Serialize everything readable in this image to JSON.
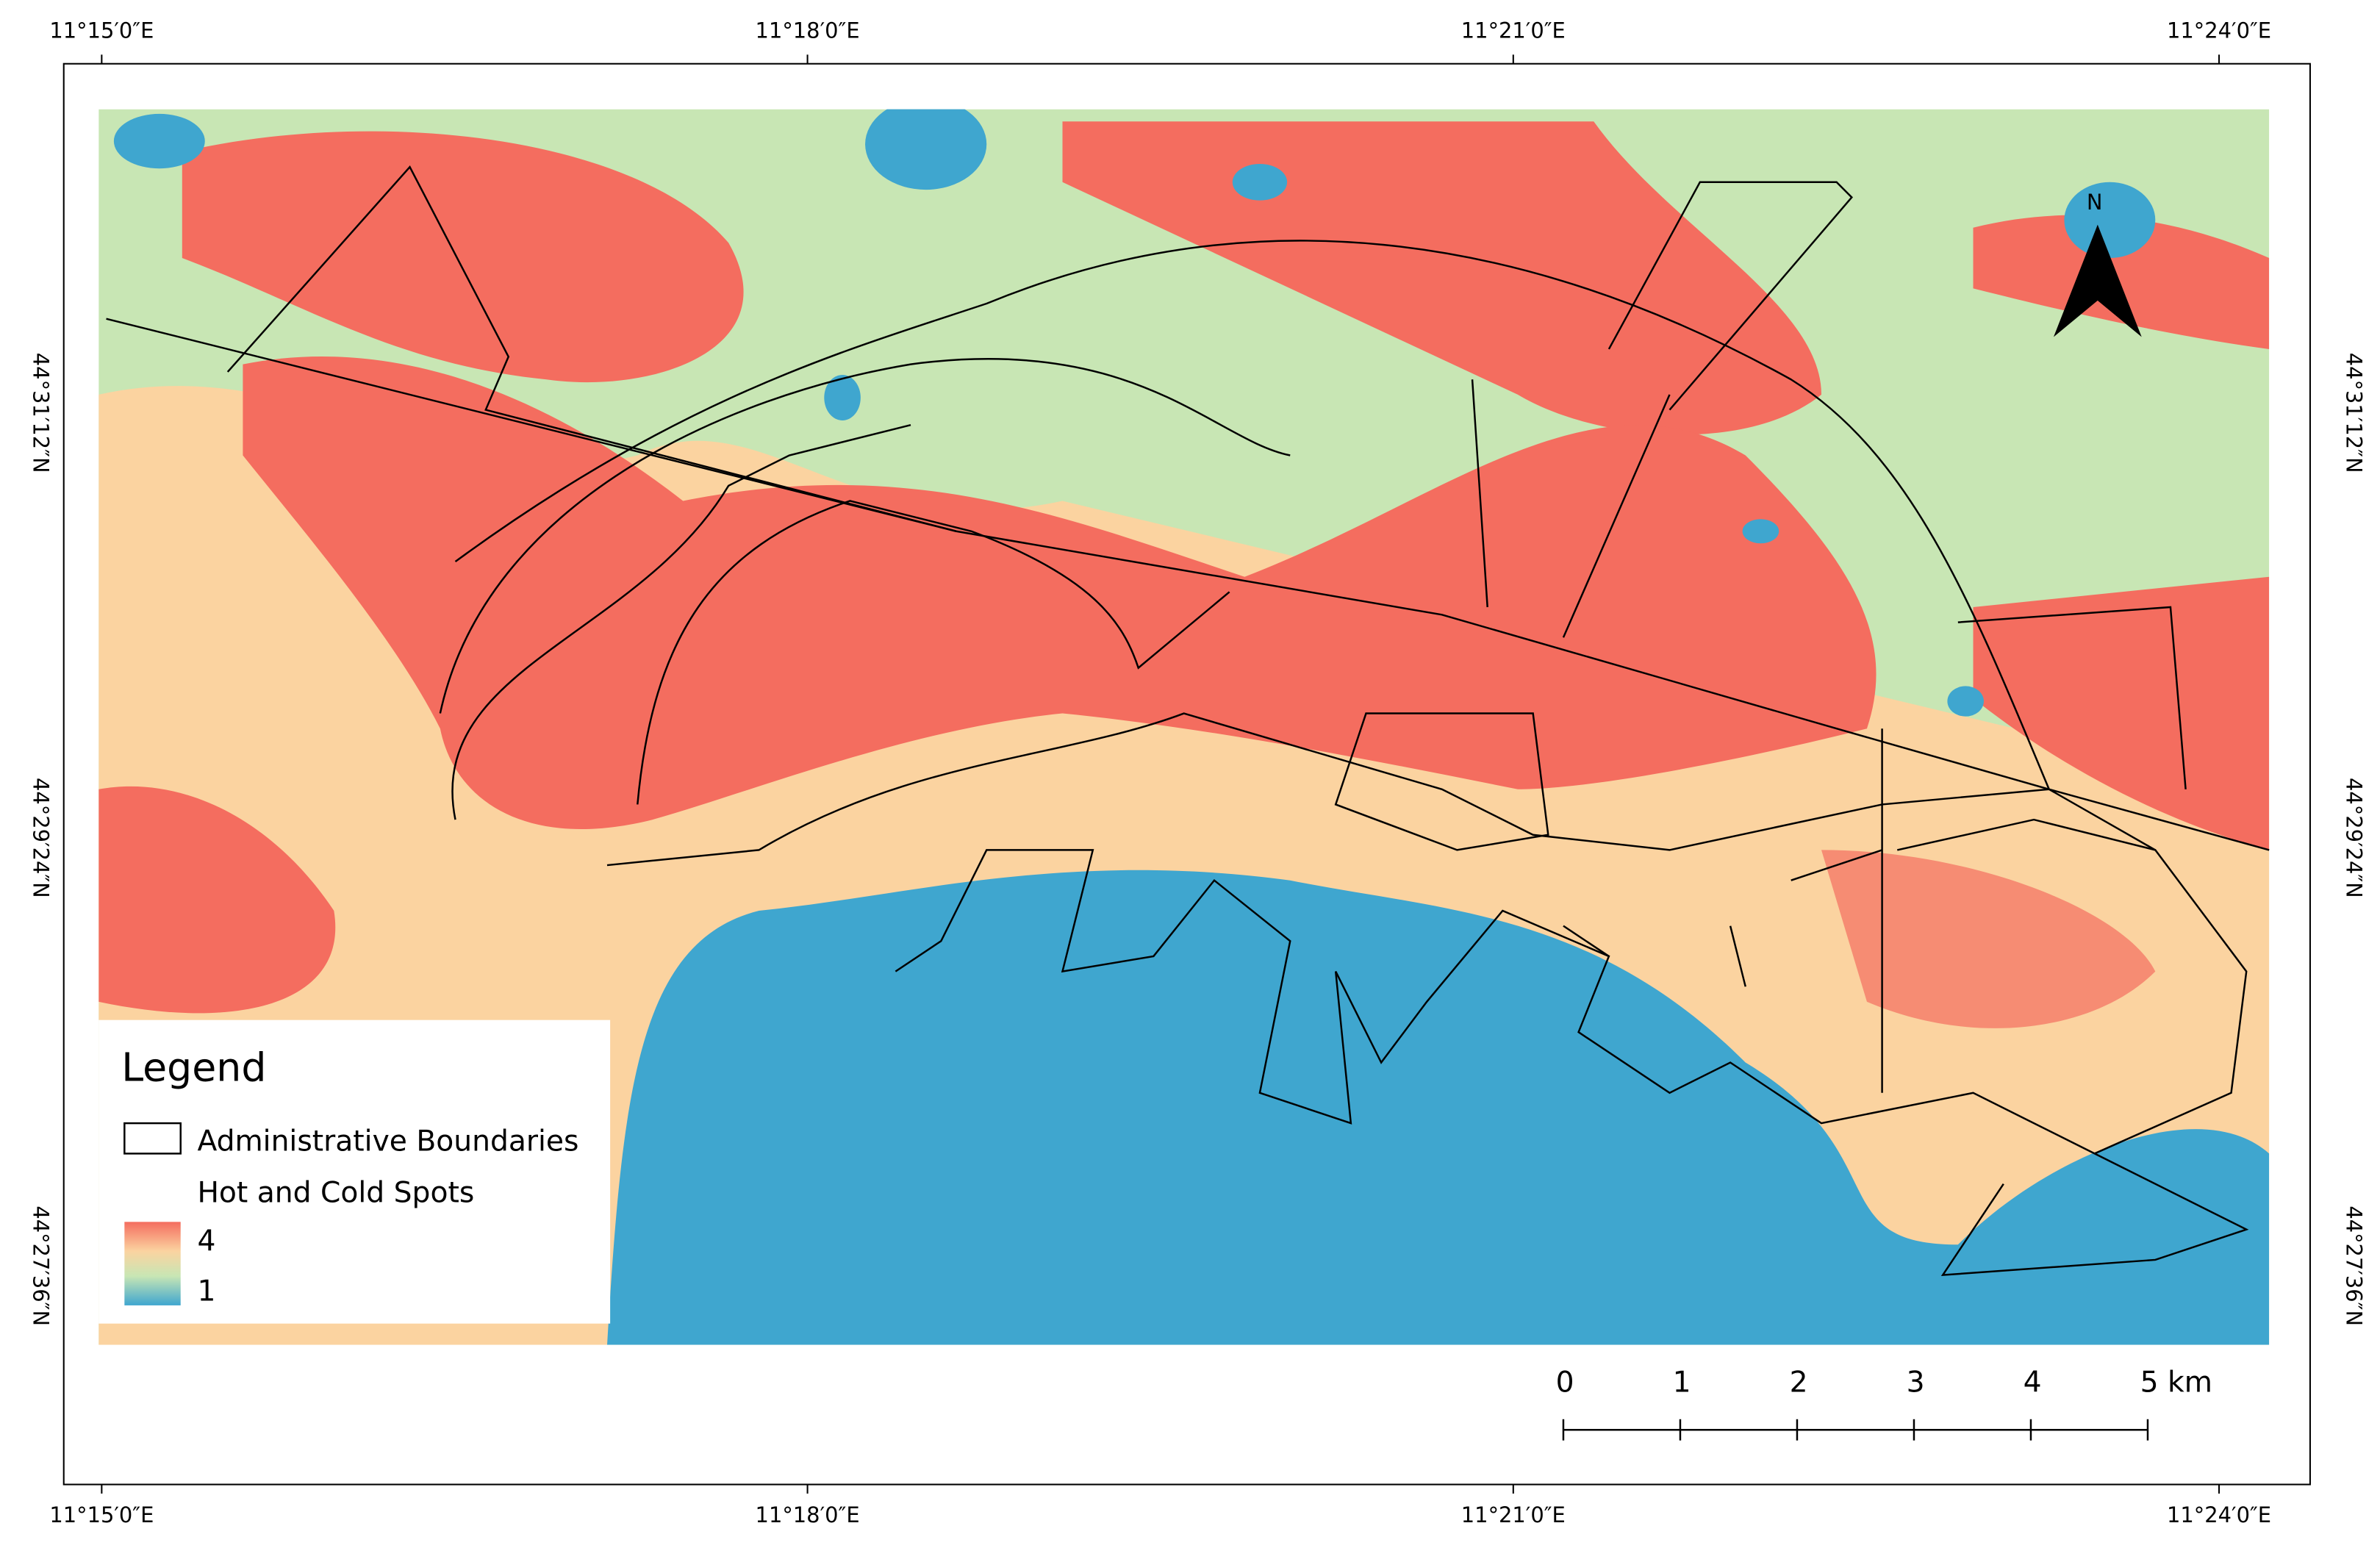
{
  "map": {
    "lon_labels_top": [
      "11°15′0″E",
      "11°18′0″E",
      "11°21′0″E",
      "11°24′0″E"
    ],
    "lon_labels_bottom": [
      "11°15′0″E",
      "11°18′0″E",
      "11°21′0″E",
      "11°24′0″E"
    ],
    "lat_labels_left": [
      "44°31′12″N",
      "44°29′24″N",
      "44°27′36″N"
    ],
    "lat_labels_right": [
      "44°31′12″N",
      "44°29′24″N",
      "44°27′36″N"
    ],
    "north_label": "N",
    "legend": {
      "title": "Legend",
      "items": [
        "Administrative Boundaries",
        "Hot and Cold Spots"
      ],
      "ramp_labels": [
        "4",
        "1"
      ]
    },
    "scale_bar": {
      "labels": [
        "0",
        "1",
        "2",
        "3",
        "4",
        "5 km"
      ]
    }
  }
}
